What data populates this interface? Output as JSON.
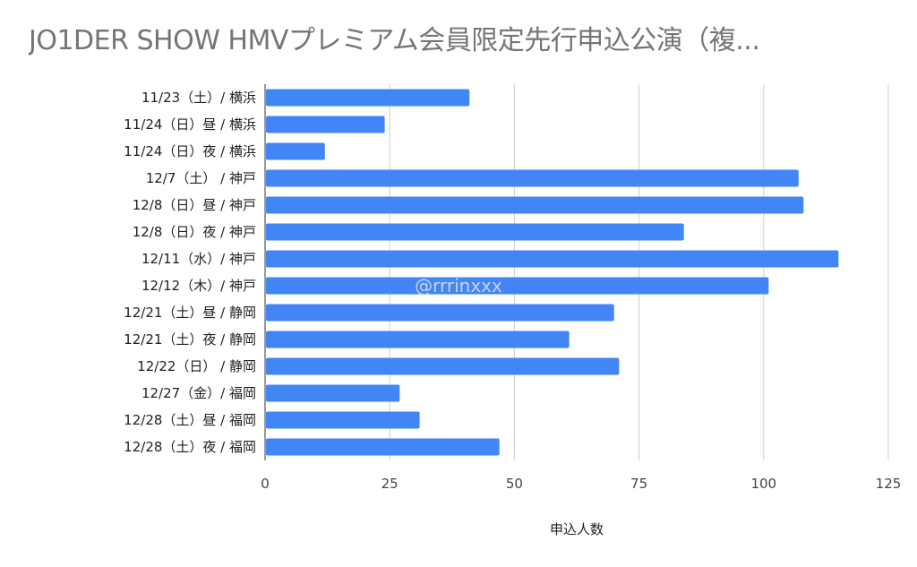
{
  "chart_data": {
    "type": "bar",
    "orientation": "horizontal",
    "title": "JO1DER SHOW HMVプレミアム会員限定先行申込公演（複...",
    "xlabel": "申込人数",
    "ylabel": "",
    "xlim": [
      0,
      125
    ],
    "x_ticks": [
      0,
      25,
      50,
      75,
      100,
      125
    ],
    "grid": true,
    "legend": "none",
    "bar_color": "#4285f4",
    "categories": [
      "11/23（土）/ 横浜",
      "11/24（日）昼 / 横浜",
      "11/24（日）夜 / 横浜",
      "12/7（土） / 神戸",
      "12/8（日）昼 / 神戸",
      "12/8（日）夜 / 神戸",
      "12/11（水）/ 神戸",
      "12/12（木）/ 神戸",
      "12/21（土）昼 / 静岡",
      "12/21（土）夜 / 静岡",
      "12/22（日） / 静岡",
      "12/27（金）/ 福岡",
      "12/28（土）昼 / 福岡",
      "12/28（土）夜 / 福岡"
    ],
    "values": [
      41,
      24,
      12,
      107,
      108,
      84,
      115,
      101,
      70,
      61,
      71,
      27,
      31,
      47
    ],
    "watermark": "@rrrinxxx"
  }
}
